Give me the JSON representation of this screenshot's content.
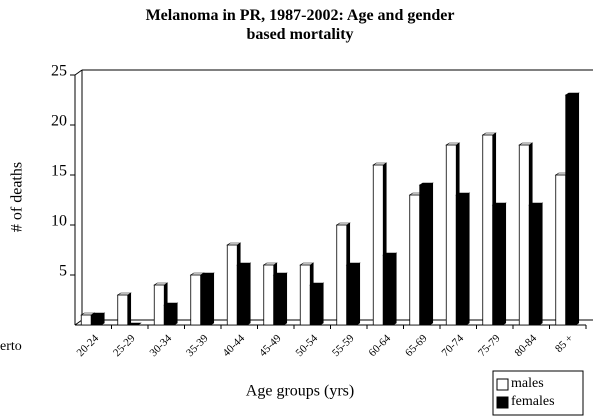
{
  "chart_data": {
    "type": "bar",
    "title": "Melanoma in PR, 1987-2002: Age and gender based mortality",
    "y_label": "# of deaths",
    "x_label": "Age groups (yrs)",
    "annotation": "erto",
    "categories": [
      "20-24",
      "25-29",
      "30-34",
      "35-39",
      "40-44",
      "45-49",
      "50-54",
      "55-59",
      "60-64",
      "65-69",
      "70-74",
      "75-79",
      "80-84",
      "85 +"
    ],
    "series": [
      {
        "name": "males",
        "color": "#ffffff",
        "values": [
          1,
          3,
          4,
          5,
          8,
          6,
          6,
          10,
          16,
          13,
          18,
          19,
          18,
          15
        ]
      },
      {
        "name": "females",
        "color": "#000000",
        "values": [
          1,
          0,
          2,
          5,
          6,
          5,
          4,
          6,
          7,
          14,
          13,
          12,
          12,
          23
        ]
      }
    ],
    "ylim": [
      0,
      25
    ],
    "yticks": [
      5,
      10,
      15,
      20,
      25
    ],
    "grid": false,
    "legend": "lower right"
  }
}
